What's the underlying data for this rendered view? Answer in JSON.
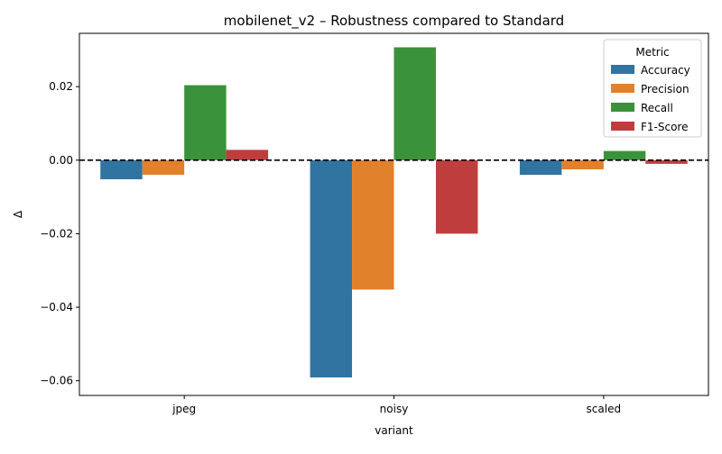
{
  "chart_data": {
    "type": "bar",
    "title": "mobilenet_v2 – Robustness compared to Standard",
    "xlabel": "variant",
    "ylabel": "Δ",
    "categories": [
      "jpeg",
      "noisy",
      "scaled"
    ],
    "series": [
      {
        "name": "Accuracy",
        "color": "#3274a1",
        "values": [
          -0.0052,
          -0.0591,
          -0.004
        ]
      },
      {
        "name": "Precision",
        "color": "#e1812c",
        "values": [
          -0.004,
          -0.0352,
          -0.0025
        ]
      },
      {
        "name": "Recall",
        "color": "#3a923a",
        "values": [
          0.0204,
          0.0307,
          0.0025
        ]
      },
      {
        "name": "F1-Score",
        "color": "#c03d3e",
        "values": [
          0.0028,
          -0.02,
          -0.001
        ]
      }
    ],
    "ylim": [
      -0.064,
      0.0345
    ],
    "yticks": [
      -0.06,
      -0.04,
      -0.02,
      0.0,
      0.02
    ],
    "ytick_labels": [
      "−0.06",
      "−0.04",
      "−0.02",
      "0.00",
      "0.02"
    ],
    "reference_line": {
      "y": 0,
      "style": "dashed",
      "color": "#000000"
    },
    "legend": {
      "title": "Metric",
      "position": "top-right"
    },
    "grid": false
  }
}
